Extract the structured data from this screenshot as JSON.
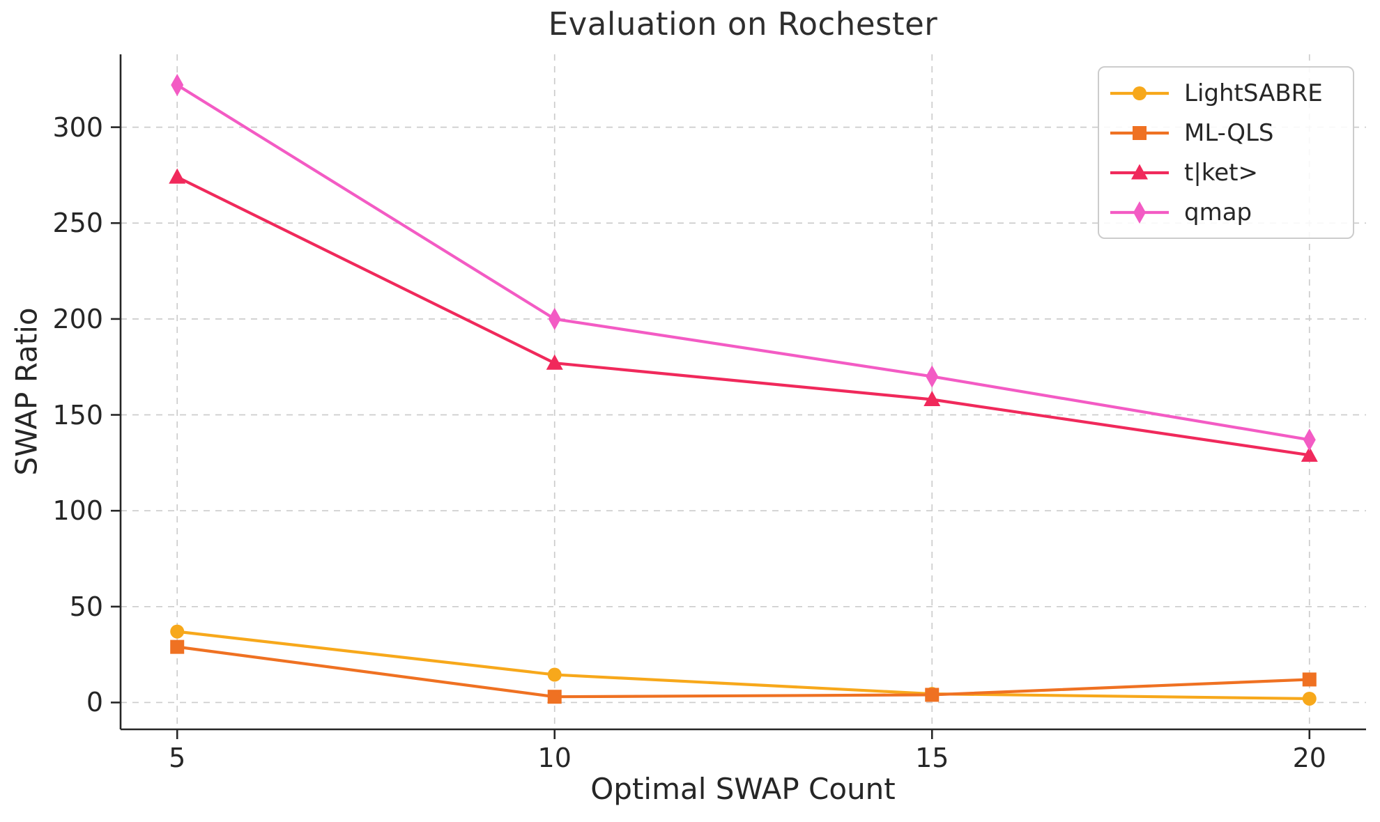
{
  "chart_data": {
    "type": "line",
    "title": "Evaluation on Rochester",
    "xlabel": "Optimal SWAP Count",
    "ylabel": "SWAP Ratio",
    "x": [
      5,
      10,
      15,
      20
    ],
    "xticks": [
      "5",
      "10",
      "15",
      "20"
    ],
    "yticks": [
      "0",
      "50",
      "100",
      "150",
      "200",
      "250",
      "300"
    ],
    "ytick_values": [
      0,
      50,
      100,
      150,
      200,
      250,
      300
    ],
    "xlim": [
      4.25,
      20.75
    ],
    "ylim": [
      -14,
      338
    ],
    "grid": "dashed-both-axes",
    "legend_position": "upper right",
    "series": [
      {
        "name": "LightSABRE",
        "color": "#F7A81B",
        "marker": "circle",
        "values": [
          37,
          14.5,
          4.5,
          2
        ]
      },
      {
        "name": "ML-QLS",
        "color": "#EF7122",
        "marker": "square",
        "values": [
          29,
          3,
          4,
          12
        ]
      },
      {
        "name": "t|ket>",
        "color": "#F0295B",
        "marker": "triangle",
        "values": [
          274,
          177,
          158,
          129
        ]
      },
      {
        "name": "qmap",
        "color": "#F35BC4",
        "marker": "diamond",
        "values": [
          322,
          200,
          170,
          137
        ]
      }
    ],
    "colors": {
      "grid": "#cccccc",
      "spine": "#262626",
      "text": "#262626"
    }
  }
}
